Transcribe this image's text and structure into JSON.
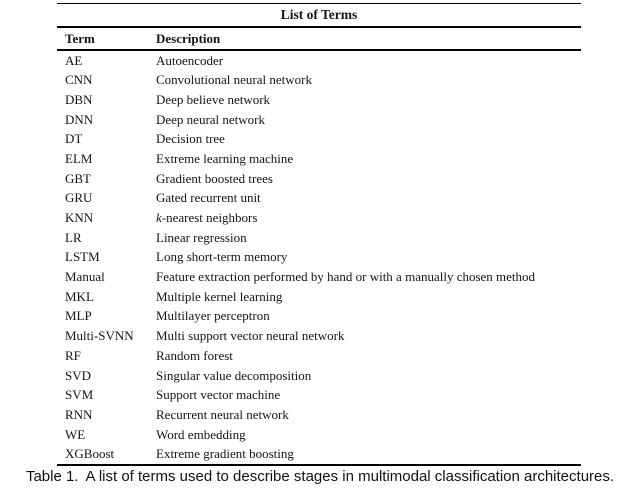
{
  "table": {
    "title": "List of Terms",
    "columns": [
      "Term",
      "Description"
    ],
    "rows": [
      {
        "term": "AE",
        "description": "Autoencoder"
      },
      {
        "term": "CNN",
        "description": "Convolutional neural network"
      },
      {
        "term": "DBN",
        "description": "Deep believe network"
      },
      {
        "term": "DNN",
        "description": "Deep neural network"
      },
      {
        "term": "DT",
        "description": "Decision tree"
      },
      {
        "term": "ELM",
        "description": "Extreme learning machine"
      },
      {
        "term": "GBT",
        "description": "Gradient boosted trees"
      },
      {
        "term": "GRU",
        "description": "Gated recurrent unit"
      },
      {
        "term": "KNN",
        "description": "k-nearest neighbors",
        "italic_lead": "k"
      },
      {
        "term": "LR",
        "description": "Linear regression"
      },
      {
        "term": "LSTM",
        "description": "Long short-term memory"
      },
      {
        "term": "Manual",
        "description": "Feature extraction performed by hand or with a manually chosen method"
      },
      {
        "term": "MKL",
        "description": "Multiple kernel learning"
      },
      {
        "term": "MLP",
        "description": "Multilayer perceptron"
      },
      {
        "term": "Multi-SVNN",
        "description": "Multi support vector neural network"
      },
      {
        "term": "RF",
        "description": "Random forest"
      },
      {
        "term": "SVD",
        "description": "Singular value decomposition"
      },
      {
        "term": "SVM",
        "description": "Support vector machine"
      },
      {
        "term": "RNN",
        "description": "Recurrent neural network"
      },
      {
        "term": "WE",
        "description": "Word embedding"
      },
      {
        "term": "XGBoost",
        "description": "Extreme gradient boosting"
      }
    ]
  },
  "caption": {
    "label": "Table 1.",
    "text": "A list of terms used to describe stages in multimodal classification architectures."
  },
  "colors": {
    "text": "#141414",
    "rule": "#000000",
    "background": "#ffffff"
  }
}
